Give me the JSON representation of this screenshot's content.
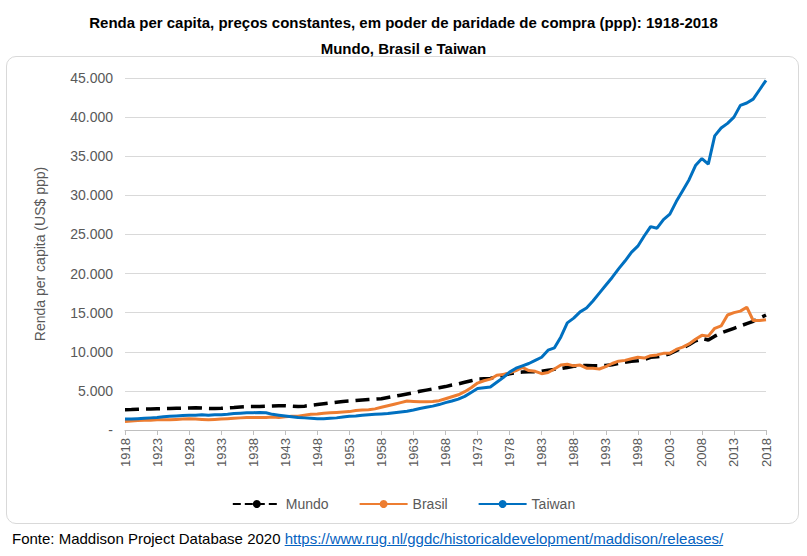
{
  "chart_data": {
    "type": "line",
    "title": "Renda per capita, preços constantes, em poder de paridade de compra (ppp): 1918-2018\nMundo, Brasil e Taiwan",
    "y_label": "Renda per capita (US$ ppp)",
    "source": {
      "text": "Fonte: Maddison Project Database 2020",
      "url": "https://www.rug.nl/ggdc/historicaldevelopment/maddison/releases/"
    },
    "x": [
      1918,
      1919,
      1920,
      1921,
      1922,
      1923,
      1924,
      1925,
      1926,
      1927,
      1928,
      1929,
      1930,
      1931,
      1932,
      1933,
      1934,
      1935,
      1936,
      1937,
      1938,
      1939,
      1940,
      1941,
      1942,
      1943,
      1944,
      1945,
      1946,
      1947,
      1948,
      1949,
      1950,
      1951,
      1952,
      1953,
      1954,
      1955,
      1956,
      1957,
      1958,
      1959,
      1960,
      1961,
      1962,
      1963,
      1964,
      1965,
      1966,
      1967,
      1968,
      1969,
      1970,
      1971,
      1972,
      1973,
      1974,
      1975,
      1976,
      1977,
      1978,
      1979,
      1980,
      1981,
      1982,
      1983,
      1984,
      1985,
      1986,
      1987,
      1988,
      1989,
      1990,
      1991,
      1992,
      1993,
      1994,
      1995,
      1996,
      1997,
      1998,
      1999,
      2000,
      2001,
      2002,
      2003,
      2004,
      2005,
      2006,
      2007,
      2008,
      2009,
      2010,
      2011,
      2012,
      2013,
      2014,
      2015,
      2016,
      2017,
      2018
    ],
    "series": [
      {
        "name": "Mundo",
        "color": "#000000",
        "line_style": "dashed",
        "values": [
          2600,
          2620,
          2650,
          2680,
          2700,
          2720,
          2740,
          2760,
          2780,
          2800,
          2820,
          2850,
          2800,
          2760,
          2740,
          2780,
          2830,
          2880,
          2950,
          3000,
          3000,
          3020,
          3050,
          3080,
          3100,
          3100,
          3050,
          3000,
          3050,
          3150,
          3250,
          3350,
          3450,
          3550,
          3650,
          3700,
          3780,
          3850,
          3900,
          3950,
          4000,
          4150,
          4300,
          4450,
          4600,
          4750,
          4950,
          5100,
          5250,
          5400,
          5550,
          5750,
          5900,
          6100,
          6300,
          6500,
          6550,
          6600,
          6800,
          7000,
          7200,
          7350,
          7400,
          7450,
          7450,
          7500,
          7650,
          7750,
          7850,
          8000,
          8150,
          8250,
          8250,
          8200,
          8200,
          8250,
          8350,
          8500,
          8650,
          8800,
          8850,
          9000,
          9300,
          9350,
          9500,
          9750,
          10150,
          10500,
          10900,
          11400,
          11700,
          11500,
          12000,
          12400,
          12700,
          13000,
          13300,
          13600,
          13900,
          14300,
          14700
        ]
      },
      {
        "name": "Brasil",
        "color": "#ED7D31",
        "line_style": "solid",
        "values": [
          1100,
          1150,
          1200,
          1250,
          1250,
          1300,
          1300,
          1300,
          1350,
          1400,
          1450,
          1400,
          1350,
          1300,
          1350,
          1400,
          1450,
          1500,
          1550,
          1600,
          1600,
          1600,
          1600,
          1650,
          1600,
          1700,
          1750,
          1750,
          1900,
          2000,
          2050,
          2150,
          2200,
          2250,
          2300,
          2350,
          2500,
          2550,
          2600,
          2700,
          2900,
          3100,
          3300,
          3500,
          3700,
          3650,
          3600,
          3600,
          3650,
          3750,
          4000,
          4250,
          4500,
          4900,
          5400,
          6000,
          6300,
          6500,
          7000,
          7100,
          7300,
          7600,
          8000,
          7600,
          7500,
          7200,
          7350,
          7800,
          8300,
          8400,
          8200,
          8300,
          7900,
          7900,
          7800,
          8100,
          8500,
          8800,
          8900,
          9100,
          9300,
          9200,
          9500,
          9600,
          9800,
          9800,
          10300,
          10600,
          11000,
          11600,
          12100,
          12000,
          13000,
          13300,
          14700,
          15000,
          15200,
          15700,
          14000,
          14000,
          14100
        ]
      },
      {
        "name": "Taiwan",
        "color": "#0070C0",
        "line_style": "solid",
        "values": [
          1400,
          1400,
          1450,
          1500,
          1550,
          1600,
          1700,
          1750,
          1800,
          1850,
          1900,
          1900,
          1950,
          1900,
          1950,
          1950,
          2000,
          2100,
          2150,
          2200,
          2200,
          2250,
          2200,
          2000,
          1900,
          1800,
          1700,
          1600,
          1550,
          1500,
          1450,
          1450,
          1500,
          1550,
          1650,
          1750,
          1800,
          1900,
          1950,
          2000,
          2050,
          2100,
          2200,
          2300,
          2400,
          2550,
          2750,
          2900,
          3050,
          3250,
          3500,
          3700,
          3950,
          4300,
          4800,
          5300,
          5400,
          5500,
          6100,
          6700,
          7400,
          7900,
          8200,
          8500,
          8900,
          9300,
          10200,
          10500,
          11900,
          13700,
          14300,
          15100,
          15600,
          16500,
          17500,
          18500,
          19500,
          20600,
          21600,
          22700,
          23500,
          24800,
          26000,
          25800,
          26900,
          27600,
          29200,
          30600,
          32000,
          33800,
          34700,
          34000,
          37600,
          38600,
          39200,
          40000,
          41500,
          41800,
          42300,
          43500,
          44700
        ]
      }
    ],
    "xlim": [
      1918,
      2018
    ],
    "xticks": [
      1918,
      1923,
      1928,
      1933,
      1938,
      1943,
      1948,
      1953,
      1958,
      1963,
      1968,
      1973,
      1978,
      1983,
      1988,
      1993,
      1998,
      2003,
      2008,
      2013,
      2018
    ],
    "ylim": [
      0,
      45000
    ],
    "yticks": [
      {
        "value": 0,
        "label": "-"
      },
      {
        "value": 5000,
        "label": "5.000"
      },
      {
        "value": 10000,
        "label": "10.000"
      },
      {
        "value": 15000,
        "label": "15.000"
      },
      {
        "value": 20000,
        "label": "20.000"
      },
      {
        "value": 25000,
        "label": "25.000"
      },
      {
        "value": 30000,
        "label": "30.000"
      },
      {
        "value": 35000,
        "label": "35.000"
      },
      {
        "value": 40000,
        "label": "40.000"
      },
      {
        "value": 45000,
        "label": "45.000"
      }
    ],
    "grid": true,
    "legend": "bottom"
  }
}
